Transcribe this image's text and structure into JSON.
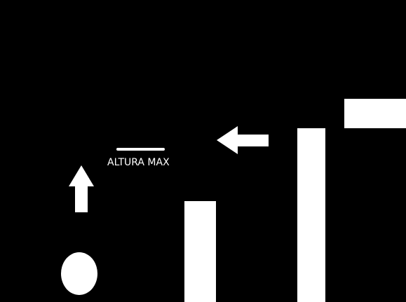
{
  "hud": {
    "max_height_label": "ALTURA MAX"
  },
  "icons": {
    "up_arrow": "up-arrow-icon",
    "left_arrow": "left-arrow-icon"
  },
  "colors": {
    "background": "#000000",
    "foreground": "#ffffff"
  }
}
